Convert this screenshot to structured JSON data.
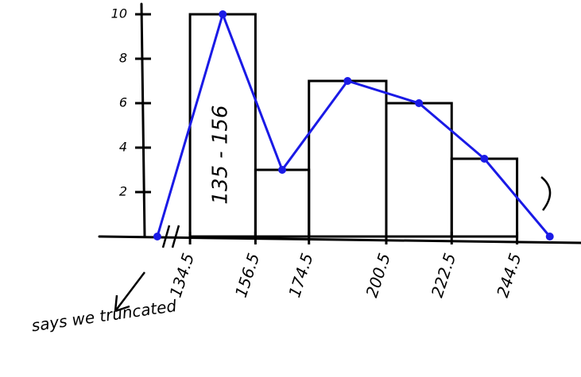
{
  "chart_data": {
    "type": "histogram",
    "bins": [
      134.5,
      156.5,
      174.5,
      200.5,
      222.5,
      244.5
    ],
    "counts": [
      10,
      3,
      7,
      6,
      3.5
    ],
    "color": "#000000",
    "polygon": {
      "x": [
        123.5,
        145.5,
        165.5,
        187.5,
        211.5,
        233.5,
        255.5
      ],
      "values": [
        0,
        10,
        3,
        7,
        6,
        3.5,
        0
      ],
      "color": "#1a1ae6"
    },
    "xlim": [
      104,
      266
    ],
    "ylim": [
      0,
      10
    ],
    "xticks": [
      134.5,
      156.5,
      174.5,
      200.5,
      222.5,
      244.5
    ],
    "yticks": [
      2,
      4,
      6,
      8,
      10
    ],
    "annotations": [
      "135 - 156",
      "says we truncated"
    ]
  }
}
